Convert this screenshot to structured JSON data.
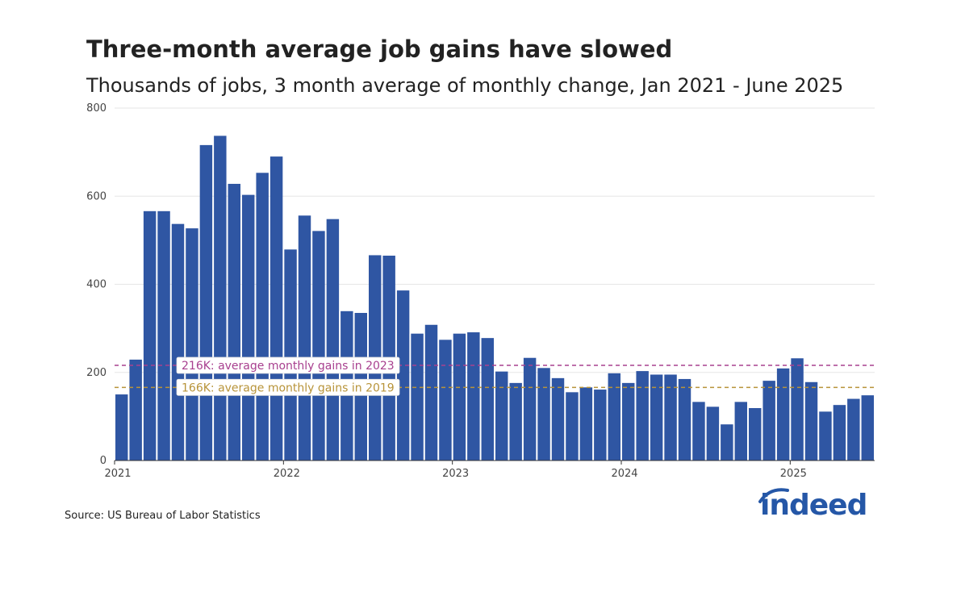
{
  "header": {
    "title": "Three-month average job gains have slowed",
    "subtitle": "Thousands of jobs, 3 month average of monthly change, Jan 2021 - June 2025"
  },
  "footer": {
    "source": "Source: US Bureau of Labor Statistics",
    "logo_text": "indeed"
  },
  "colors": {
    "bar": "#2f56a3",
    "ref_2023": "#a8408f",
    "ref_2019": "#b8943a",
    "grid": "#e6e6e6",
    "brand": "#2557a7"
  },
  "chart_data": {
    "type": "bar",
    "title": "Three-month average job gains have slowed",
    "subtitle": "Thousands of jobs, 3 month average of monthly change, Jan 2021 - June 2025",
    "xlabel": "",
    "ylabel": "",
    "ylim": [
      0,
      800
    ],
    "yticks": [
      0,
      200,
      400,
      600,
      800
    ],
    "grid": true,
    "xtick_labels": [
      {
        "label": "2021",
        "x": "2021-01"
      },
      {
        "label": "2022",
        "x": "2022-01"
      },
      {
        "label": "2023",
        "x": "2023-01"
      },
      {
        "label": "2024",
        "x": "2024-01"
      },
      {
        "label": "2025",
        "x": "2025-01"
      }
    ],
    "categories": [
      "2021-01",
      "2021-02",
      "2021-03",
      "2021-04",
      "2021-05",
      "2021-06",
      "2021-07",
      "2021-08",
      "2021-09",
      "2021-10",
      "2021-11",
      "2021-12",
      "2022-01",
      "2022-02",
      "2022-03",
      "2022-04",
      "2022-05",
      "2022-06",
      "2022-07",
      "2022-08",
      "2022-09",
      "2022-10",
      "2022-11",
      "2022-12",
      "2023-01",
      "2023-02",
      "2023-03",
      "2023-04",
      "2023-05",
      "2023-06",
      "2023-07",
      "2023-08",
      "2023-09",
      "2023-10",
      "2023-11",
      "2023-12",
      "2024-01",
      "2024-02",
      "2024-03",
      "2024-04",
      "2024-05",
      "2024-06",
      "2024-07",
      "2024-08",
      "2024-09",
      "2024-10",
      "2024-11",
      "2024-12",
      "2025-01",
      "2025-02",
      "2025-03",
      "2025-04",
      "2025-05",
      "2025-06"
    ],
    "values": [
      150,
      229,
      566,
      566,
      537,
      527,
      716,
      737,
      628,
      603,
      653,
      690,
      479,
      556,
      521,
      548,
      339,
      335,
      466,
      465,
      386,
      288,
      308,
      274,
      288,
      291,
      278,
      202,
      176,
      233,
      210,
      187,
      155,
      166,
      161,
      198,
      176,
      203,
      195,
      195,
      185,
      133,
      122,
      82,
      133,
      119,
      181,
      209,
      232,
      178,
      111,
      126,
      140,
      148
    ],
    "reference_lines": [
      {
        "value": 216,
        "label": "216K: average monthly gains in 2023",
        "color": "#a8408f",
        "style": "dashed"
      },
      {
        "value": 166,
        "label": "166K: average monthly gains in 2019",
        "color": "#b8943a",
        "style": "dashed"
      }
    ]
  }
}
